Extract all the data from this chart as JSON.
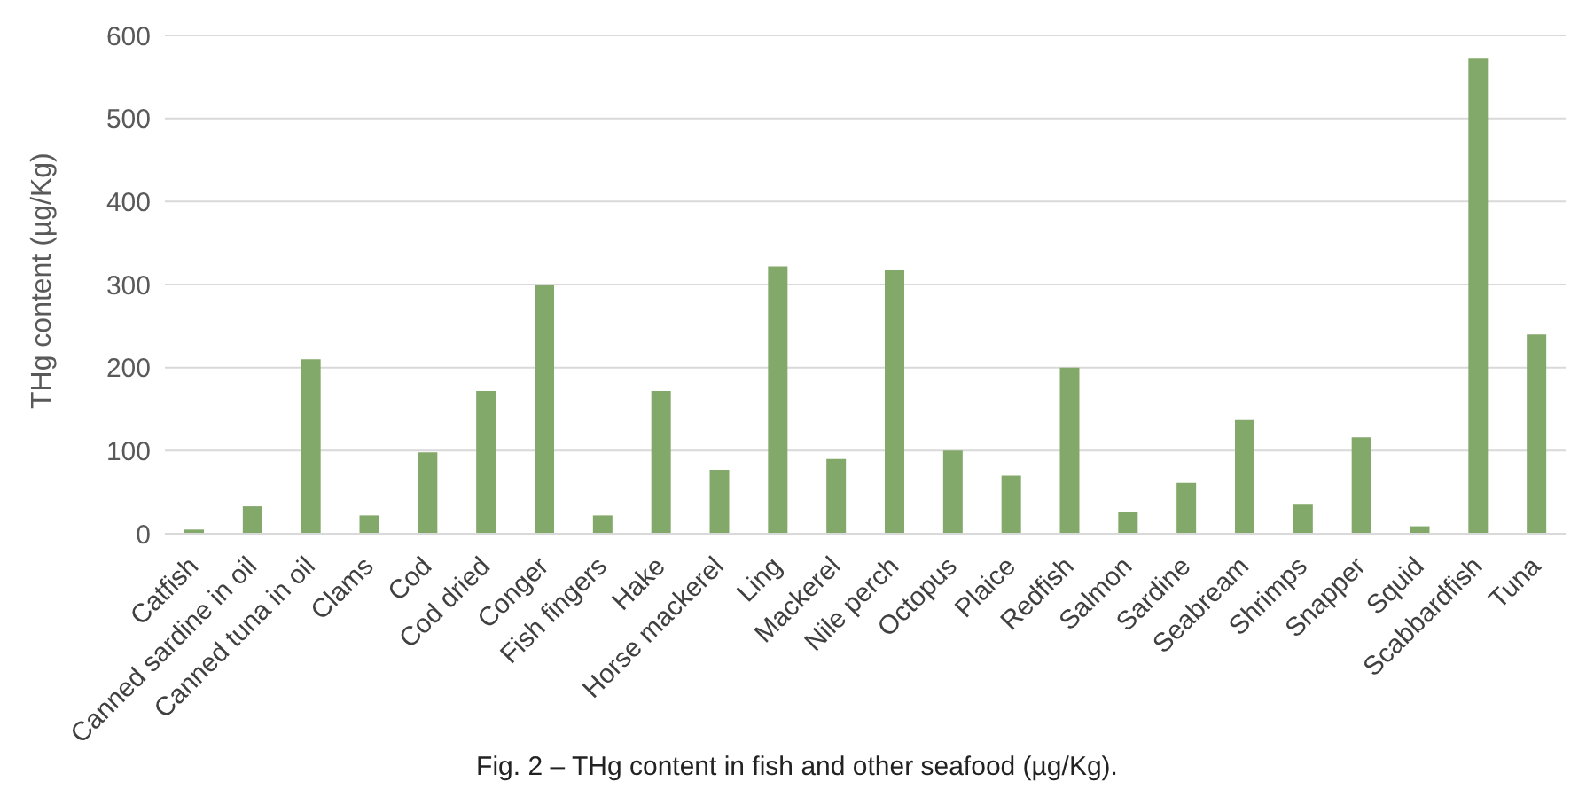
{
  "chart_data": {
    "type": "bar",
    "title": "Fig. 2 – THg content in fish and other seafood (µg/Kg).",
    "ylabel": "THg content (µg/Kg)",
    "categories": [
      "Catfish",
      "Canned sardine in oil",
      "Canned tuna in oil",
      "Clams",
      "Cod",
      "Cod dried",
      "Conger",
      "Fish fingers",
      "Hake",
      "Horse mackerel",
      "Ling",
      "Mackerel",
      "Nile perch",
      "Octopus",
      "Plaice",
      "Redfish",
      "Salmon",
      "Sardine",
      "Seabream",
      "Shrimps",
      "Snapper",
      "Squid",
      "Scabbardfish",
      "Tuna"
    ],
    "values": [
      5,
      33,
      210,
      22,
      98,
      172,
      300,
      22,
      172,
      77,
      322,
      90,
      317,
      100,
      70,
      200,
      26,
      61,
      137,
      35,
      116,
      9,
      573,
      240
    ],
    "color": "#83a96a",
    "ylim": [
      0,
      600
    ],
    "yticks": [
      0,
      100,
      200,
      300,
      400,
      500,
      600
    ],
    "grid": "y"
  }
}
